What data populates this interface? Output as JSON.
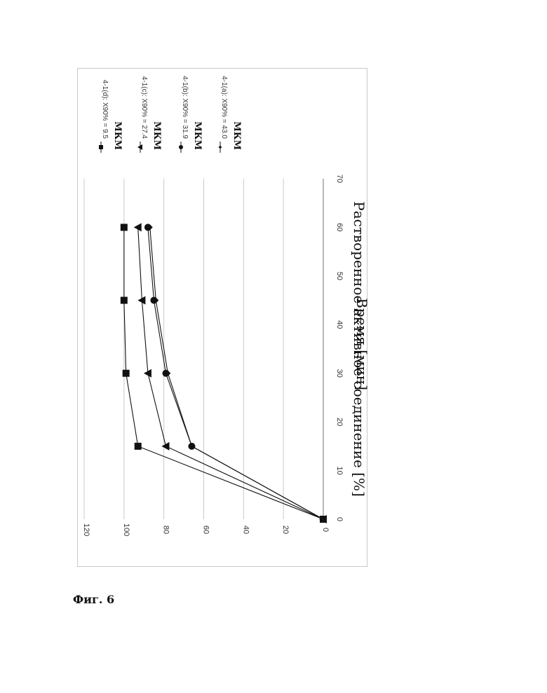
{
  "figure": {
    "caption": "Фиг. 6"
  },
  "chart_data": {
    "type": "line",
    "title": "",
    "xlabel": "Время [мин]",
    "ylabel": "Растворенное активное соединение [%]",
    "x": [
      0,
      15,
      30,
      45,
      60
    ],
    "xlim": [
      0,
      70
    ],
    "ylim": [
      0,
      120
    ],
    "xticks": [
      0,
      10,
      20,
      30,
      40,
      50,
      60,
      70
    ],
    "yticks": [
      0,
      20,
      40,
      60,
      80,
      100,
      120
    ],
    "grid": "horizontal",
    "orientation": "rotated 90° clockwise on page",
    "legend_position": "right",
    "series": [
      {
        "name": "4-1(d): X90% = 9.5",
        "unit": "МКМ",
        "marker": "square",
        "values": [
          0,
          93,
          99,
          100,
          100
        ]
      },
      {
        "name": "4-1(c): X90% = 27.4",
        "unit": "МКМ",
        "marker": "triangle",
        "values": [
          0,
          79,
          88,
          91,
          93
        ]
      },
      {
        "name": "4-1(b): X90% = 31.9",
        "unit": "МКМ",
        "marker": "circle",
        "values": [
          0,
          66,
          79,
          85,
          88
        ]
      },
      {
        "name": "4-1(a): X90% = 43.0",
        "unit": "МКМ",
        "marker": "diamond",
        "values": [
          0,
          66,
          78,
          84,
          87
        ]
      }
    ]
  }
}
